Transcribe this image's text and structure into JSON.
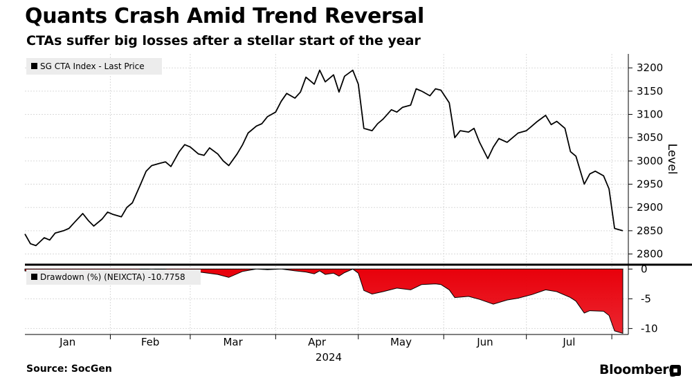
{
  "header": {
    "title": "Quants Crash Amid Trend Reversal",
    "subtitle": "CTAs suffer big losses after a stellar start of the year"
  },
  "footer": {
    "source": "Source: SocGen",
    "brand": "Bloomberg"
  },
  "colors": {
    "line": "#000000",
    "drawdown_fill": "#e8000b",
    "grid": "#d9d9d9",
    "panel_bg": "#ffffff"
  },
  "chart_data": [
    {
      "type": "line",
      "legend": "SG CTA Index - Last Price",
      "ylabel": "Level",
      "ylim": [
        2780,
        3230
      ],
      "yticks": [
        2800,
        2850,
        2900,
        2950,
        3000,
        3050,
        3100,
        3150,
        3200
      ],
      "xlim": [
        "2024-01-01",
        "2024-08-07"
      ],
      "xticks": [
        "Jan",
        "Feb",
        "Mar",
        "Apr",
        "May",
        "Jun",
        "Jul"
      ],
      "year_label": "2024",
      "grid": true,
      "series": [
        {
          "x": [
            "2024-01-01",
            "2024-01-03",
            "2024-01-05",
            "2024-01-08",
            "2024-01-10",
            "2024-01-12",
            "2024-01-15",
            "2024-01-17",
            "2024-01-19",
            "2024-01-22",
            "2024-01-24",
            "2024-01-26",
            "2024-01-29",
            "2024-01-31",
            "2024-02-02",
            "2024-02-05",
            "2024-02-07",
            "2024-02-09",
            "2024-02-12",
            "2024-02-14",
            "2024-02-16",
            "2024-02-19",
            "2024-02-21",
            "2024-02-23",
            "2024-02-26",
            "2024-02-28",
            "2024-03-01",
            "2024-03-04",
            "2024-03-06",
            "2024-03-08",
            "2024-03-11",
            "2024-03-13",
            "2024-03-15",
            "2024-03-18",
            "2024-03-20",
            "2024-03-22",
            "2024-03-25",
            "2024-03-27",
            "2024-03-29",
            "2024-04-01",
            "2024-04-03",
            "2024-04-05",
            "2024-04-08",
            "2024-04-10",
            "2024-04-12",
            "2024-04-15",
            "2024-04-17",
            "2024-04-19",
            "2024-04-22",
            "2024-04-24",
            "2024-04-26",
            "2024-04-29",
            "2024-05-01",
            "2024-05-03",
            "2024-05-06",
            "2024-05-08",
            "2024-05-10",
            "2024-05-13",
            "2024-05-15",
            "2024-05-17",
            "2024-05-20",
            "2024-05-22",
            "2024-05-24",
            "2024-05-27",
            "2024-05-29",
            "2024-05-31",
            "2024-06-03",
            "2024-06-05",
            "2024-06-07",
            "2024-06-10",
            "2024-06-12",
            "2024-06-14",
            "2024-06-17",
            "2024-06-19",
            "2024-06-21",
            "2024-06-24",
            "2024-06-26",
            "2024-06-28",
            "2024-07-01",
            "2024-07-03",
            "2024-07-05",
            "2024-07-08",
            "2024-07-10",
            "2024-07-12",
            "2024-07-15",
            "2024-07-17",
            "2024-07-19",
            "2024-07-22",
            "2024-07-24",
            "2024-07-26",
            "2024-07-29",
            "2024-07-31",
            "2024-08-02",
            "2024-08-05"
          ],
          "values": [
            2843,
            2822,
            2818,
            2835,
            2830,
            2845,
            2850,
            2855,
            2868,
            2887,
            2872,
            2860,
            2875,
            2890,
            2885,
            2880,
            2900,
            2910,
            2950,
            2978,
            2990,
            2995,
            2998,
            2988,
            3020,
            3035,
            3030,
            3015,
            3012,
            3028,
            3015,
            3000,
            2990,
            3015,
            3035,
            3060,
            3075,
            3080,
            3095,
            3105,
            3128,
            3145,
            3135,
            3148,
            3180,
            3165,
            3195,
            3170,
            3185,
            3148,
            3182,
            3195,
            3165,
            3070,
            3065,
            3080,
            3090,
            3110,
            3105,
            3115,
            3120,
            3155,
            3150,
            3140,
            3155,
            3152,
            3125,
            3050,
            3065,
            3062,
            3070,
            3040,
            3005,
            3030,
            3048,
            3040,
            3050,
            3060,
            3065,
            3075,
            3085,
            3098,
            3078,
            3085,
            3070,
            3020,
            3010,
            2950,
            2972,
            2978,
            2968,
            2940,
            2855,
            2850
          ]
        }
      ]
    },
    {
      "type": "area",
      "legend": "Drawdown (%) (NEIXCTA) -10.7758",
      "ylim": [
        -11,
        0.5
      ],
      "yticks": [
        0,
        -5,
        -10
      ],
      "grid": true,
      "series": [
        {
          "x": [
            "2024-01-01",
            "2024-01-05",
            "2024-01-10",
            "2024-01-15",
            "2024-01-19",
            "2024-01-24",
            "2024-01-29",
            "2024-02-02",
            "2024-02-07",
            "2024-02-12",
            "2024-02-16",
            "2024-02-21",
            "2024-02-26",
            "2024-03-01",
            "2024-03-06",
            "2024-03-11",
            "2024-03-15",
            "2024-03-20",
            "2024-03-25",
            "2024-03-29",
            "2024-04-03",
            "2024-04-08",
            "2024-04-12",
            "2024-04-15",
            "2024-04-17",
            "2024-04-19",
            "2024-04-22",
            "2024-04-24",
            "2024-04-26",
            "2024-04-29",
            "2024-05-01",
            "2024-05-03",
            "2024-05-06",
            "2024-05-10",
            "2024-05-15",
            "2024-05-20",
            "2024-05-24",
            "2024-05-29",
            "2024-05-31",
            "2024-06-03",
            "2024-06-05",
            "2024-06-10",
            "2024-06-14",
            "2024-06-19",
            "2024-06-24",
            "2024-06-28",
            "2024-07-03",
            "2024-07-08",
            "2024-07-12",
            "2024-07-17",
            "2024-07-19",
            "2024-07-22",
            "2024-07-24",
            "2024-07-29",
            "2024-07-31",
            "2024-08-02",
            "2024-08-05"
          ],
          "values": [
            -0.3,
            -0.6,
            -0.5,
            -0.4,
            -0.3,
            -0.5,
            -0.4,
            -0.2,
            -0.3,
            -0.1,
            0,
            -0.1,
            -0.4,
            -0.3,
            -0.6,
            -0.9,
            -1.4,
            -0.4,
            0,
            -0.1,
            0,
            -0.3,
            -0.5,
            -0.8,
            -0.3,
            -0.9,
            -0.7,
            -1.2,
            -0.6,
            0,
            -0.7,
            -3.6,
            -4.2,
            -3.8,
            -3.2,
            -3.5,
            -2.6,
            -2.5,
            -2.6,
            -3.5,
            -4.8,
            -4.6,
            -5.1,
            -5.9,
            -5.2,
            -4.9,
            -4.3,
            -3.5,
            -3.8,
            -4.8,
            -5.4,
            -7.4,
            -7.0,
            -7.1,
            -7.8,
            -10.4,
            -10.8
          ]
        }
      ]
    }
  ]
}
